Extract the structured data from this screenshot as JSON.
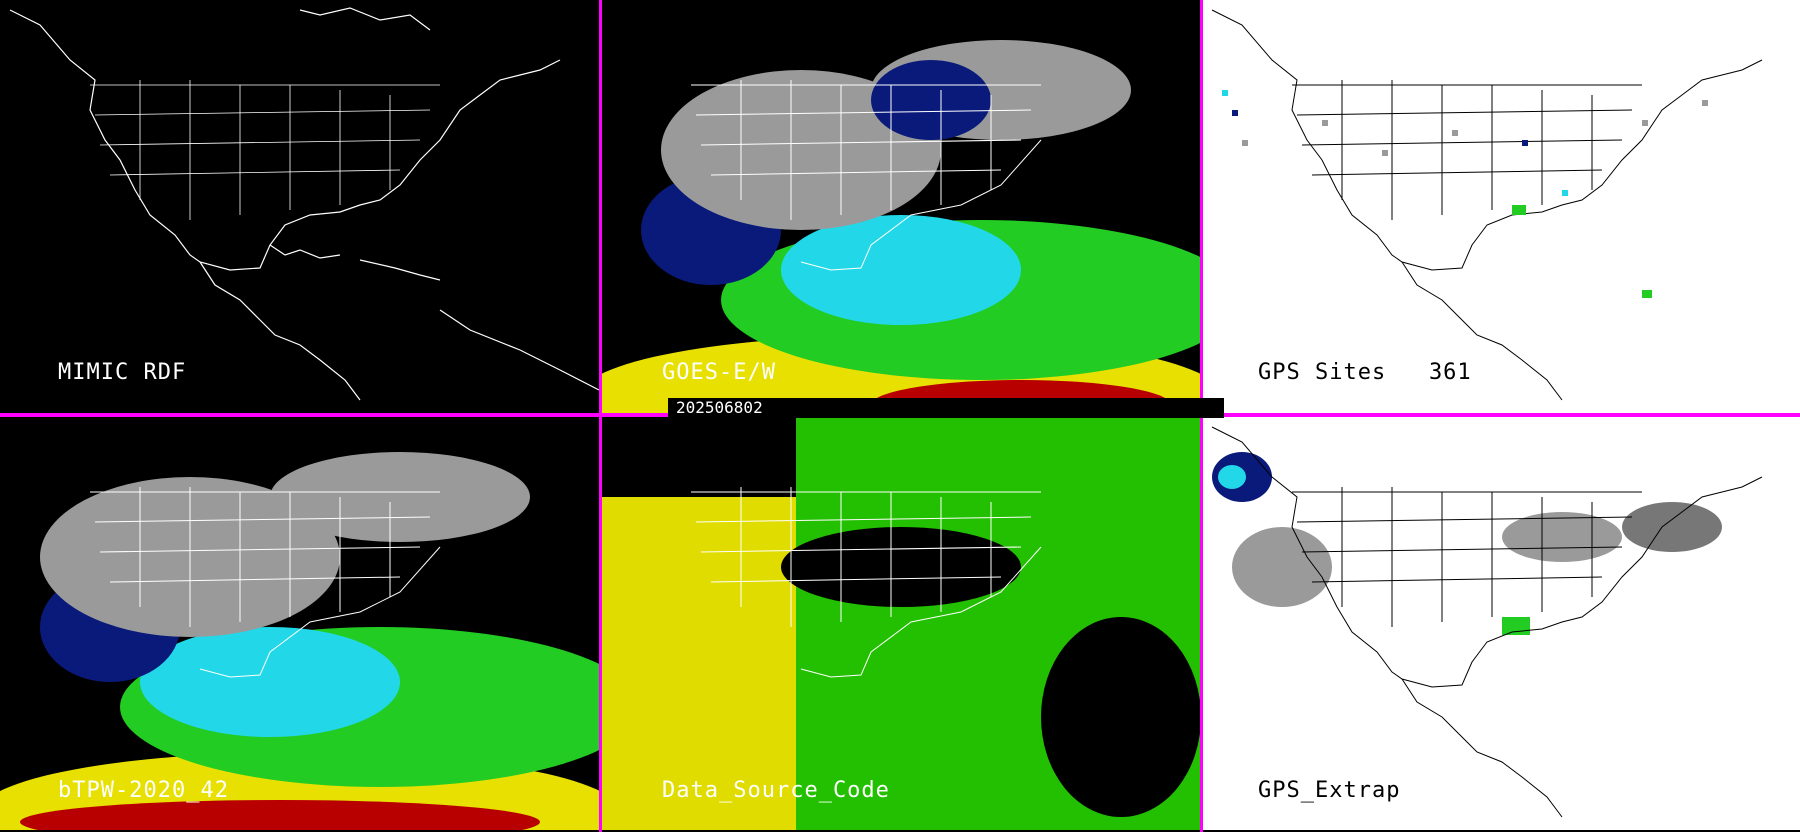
{
  "panels": [
    {
      "label": "MIMIC RDF",
      "theme": "dark-map"
    },
    {
      "label": "GOES-E/W",
      "theme": "satellite"
    },
    {
      "label": "GPS Sites   361",
      "theme": "white-map"
    },
    {
      "label": "bTPW-2020_42",
      "theme": "satellite"
    },
    {
      "label": "Data_Source_Code",
      "theme": "source-code"
    },
    {
      "label": "GPS_Extrap",
      "theme": "white-map"
    }
  ],
  "timestamp": "202506802",
  "colors": {
    "separator": "#ff00ff",
    "dry_gray": "#9a9a9a",
    "navy": "#0a1a7a",
    "cyan": "#22d8e8",
    "green": "#22cc22",
    "yellow": "#e8e000",
    "red": "#b80000",
    "source_yellow": "#e0dc00",
    "source_green": "#22c000"
  }
}
